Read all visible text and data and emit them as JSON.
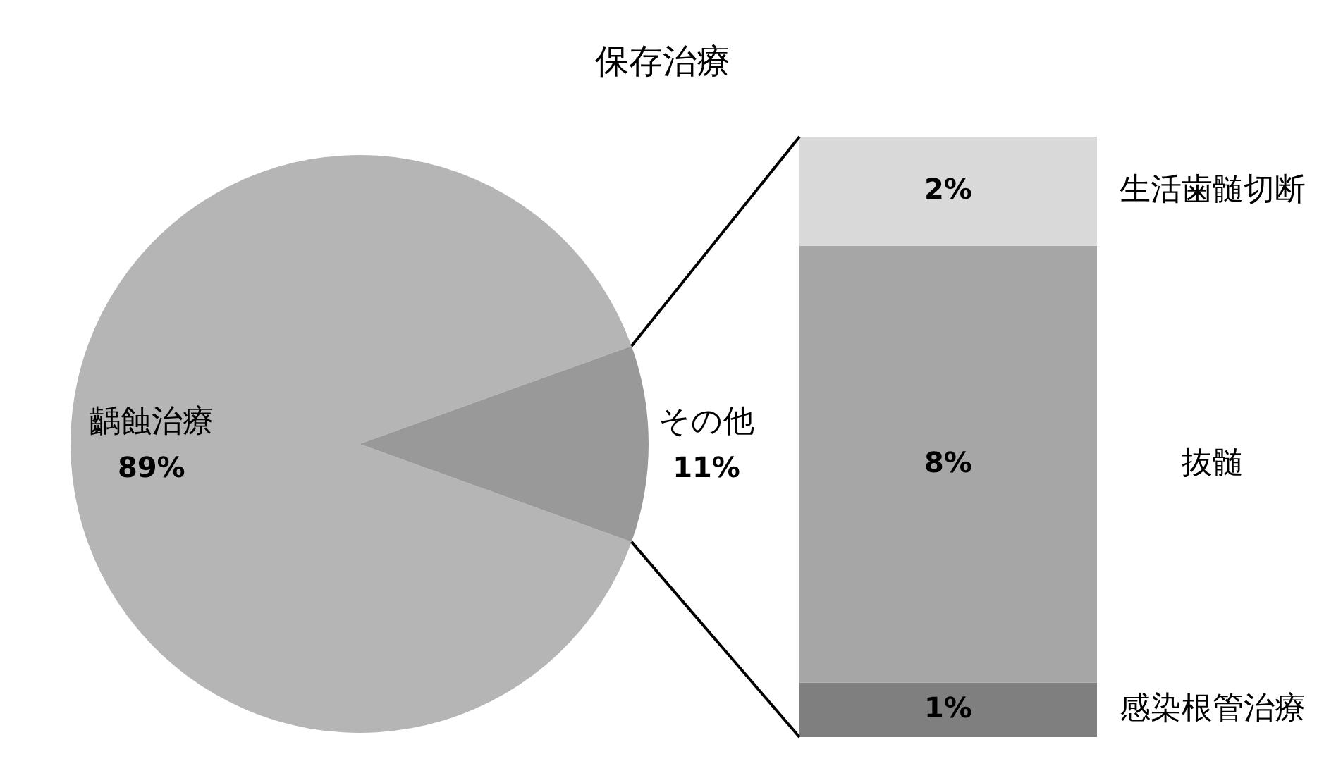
{
  "chart_data": [
    {
      "type": "pie",
      "title": "保存治療",
      "categories": [
        "齲蝕治療",
        "その他"
      ],
      "values": [
        89,
        11
      ],
      "colors": [
        "#b5b5b5",
        "#999999"
      ],
      "value_labels": [
        "89%",
        "11%"
      ]
    },
    {
      "type": "bar",
      "stacked": true,
      "categories": [
        null
      ],
      "series": [
        {
          "name": "感染根管治療",
          "color": "#7f7f7f",
          "values": [
            1
          ],
          "value_labels": [
            "1%"
          ]
        },
        {
          "name": "抜髄",
          "color": "#a6a6a6",
          "values": [
            8
          ],
          "value_labels": [
            "8%"
          ]
        },
        {
          "name": "生活歯髄切断",
          "color": "#d9d9d9",
          "values": [
            2
          ],
          "value_labels": [
            "2%"
          ]
        }
      ]
    }
  ]
}
